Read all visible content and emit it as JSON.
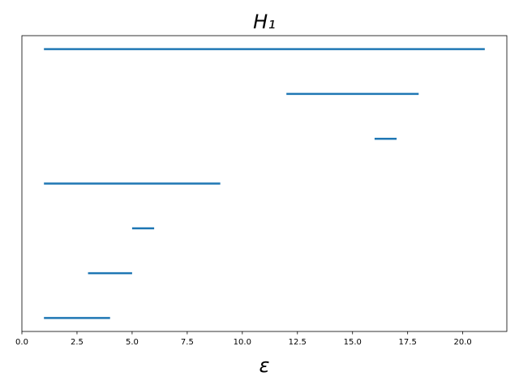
{
  "chart_data": {
    "type": "barcode",
    "title": "H₁",
    "x_label": "ε",
    "births": [
      1,
      3,
      5,
      1,
      16,
      12,
      1
    ],
    "deaths": [
      4,
      5,
      6,
      9,
      17,
      18,
      21
    ],
    "color": "#1f77b4",
    "xlim": [
      0,
      22
    ],
    "xticks": [
      {
        "value": 0,
        "label": "0.0"
      },
      2.5,
      {
        "value": 5,
        "label": "5.0"
      },
      7.5,
      {
        "value": 10,
        "label": "10.0"
      },
      12.5,
      {
        "value": 15,
        "label": "15.0"
      },
      17.5,
      {
        "value": 20,
        "label": "20.0"
      }
    ]
  }
}
